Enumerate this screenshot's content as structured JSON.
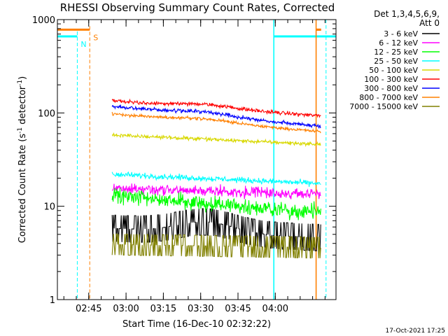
{
  "chart_data": {
    "type": "line",
    "title": "RHESSI Observing Summary Count Rates, Corrected",
    "xlabel": "Start Time (16-Dec-10 02:32:22)",
    "ylabel_main": "Corrected Count Rate (s",
    "ylabel_exp1": "-1",
    "ylabel_mid": " detector",
    "ylabel_exp2": "-1",
    "ylabel_end": ")",
    "yscale": "log",
    "ylim": [
      1,
      1000
    ],
    "xlim_minutes": [
      0,
      112
    ],
    "data_window_minutes": [
      22,
      106
    ],
    "x_ticks": [
      {
        "label": "02:45",
        "min": 12.6
      },
      {
        "label": "03:00",
        "min": 27.6
      },
      {
        "label": "03:15",
        "min": 42.6
      },
      {
        "label": "03:30",
        "min": 57.6
      },
      {
        "label": "03:45",
        "min": 72.6
      },
      {
        "label": "04:00",
        "min": 87.6
      }
    ],
    "y_ticks": [
      {
        "label": "1",
        "value": 1
      },
      {
        "label": "10",
        "value": 10
      },
      {
        "label": "100",
        "value": 100
      },
      {
        "label": "1000",
        "value": 1000
      }
    ],
    "legend": {
      "header1": "Det 1,3,4,5,6,9,",
      "header2": "Att 0",
      "position": "top-right"
    },
    "series": [
      {
        "name": "3 - 6 keV",
        "color": "#000000",
        "kind": "steps",
        "start": 5.8,
        "end": 4.6,
        "noise": 1.6,
        "bump": 1.3
      },
      {
        "name": "6 - 12 keV",
        "color": "#ff00ff",
        "kind": "noisy",
        "start": 15.5,
        "end": 13.5,
        "noise": 1.12,
        "bump": 1.0
      },
      {
        "name": "12 - 25 keV",
        "color": "#00ff00",
        "kind": "noisy",
        "start": 13.0,
        "end": 8.5,
        "noise": 1.18,
        "bump": 1.0
      },
      {
        "name": "25 - 50 keV",
        "color": "#00ffff",
        "kind": "noisy",
        "start": 22.0,
        "end": 17.5,
        "noise": 1.06,
        "bump": 1.0
      },
      {
        "name": "50 - 100 keV",
        "color": "#d8d800",
        "kind": "noisy",
        "start": 58.0,
        "end": 46.0,
        "noise": 1.04,
        "bump": 1.0
      },
      {
        "name": "100 - 300 keV",
        "color": "#ff0000",
        "kind": "noisy",
        "start": 135.0,
        "end": 93.0,
        "noise": 1.04,
        "bump": 1.08
      },
      {
        "name": "300 - 800 keV",
        "color": "#0000ff",
        "kind": "noisy",
        "start": 118.0,
        "end": 72.0,
        "noise": 1.04,
        "bump": 1.08
      },
      {
        "name": "800 - 7000 keV",
        "color": "#ff8000",
        "kind": "noisy",
        "start": 98.0,
        "end": 63.0,
        "noise": 1.03,
        "bump": 1.07
      },
      {
        "name": "7000 - 15000 keV",
        "color": "#808000",
        "kind": "steps",
        "start": 3.9,
        "end": 3.6,
        "noise": 1.45,
        "bump": 1.0
      }
    ],
    "annotations": [
      {
        "type": "night",
        "label": "N",
        "color": "#00ffff",
        "segments": [
          [
            0,
            8
          ],
          [
            87,
            112
          ]
        ],
        "level": 660,
        "marker_min": 8.0
      },
      {
        "type": "saa",
        "label": "S",
        "color": "#ff8000",
        "segments": [
          [
            0,
            13
          ],
          [
            104,
            106
          ]
        ],
        "level": 780,
        "marker_min": 13.0
      },
      {
        "type": "solid-vline",
        "color": "#00ffff",
        "min": 87.0
      },
      {
        "type": "solid-vline",
        "color": "#ff8000",
        "min": 104.0
      },
      {
        "type": "dashed-vline",
        "color": "#00ffff",
        "min": 108.0
      }
    ],
    "footer_timestamp": "17-Oct-2021 17:25"
  },
  "colors": {
    "axes": "#000000",
    "background": "#ffffff"
  }
}
